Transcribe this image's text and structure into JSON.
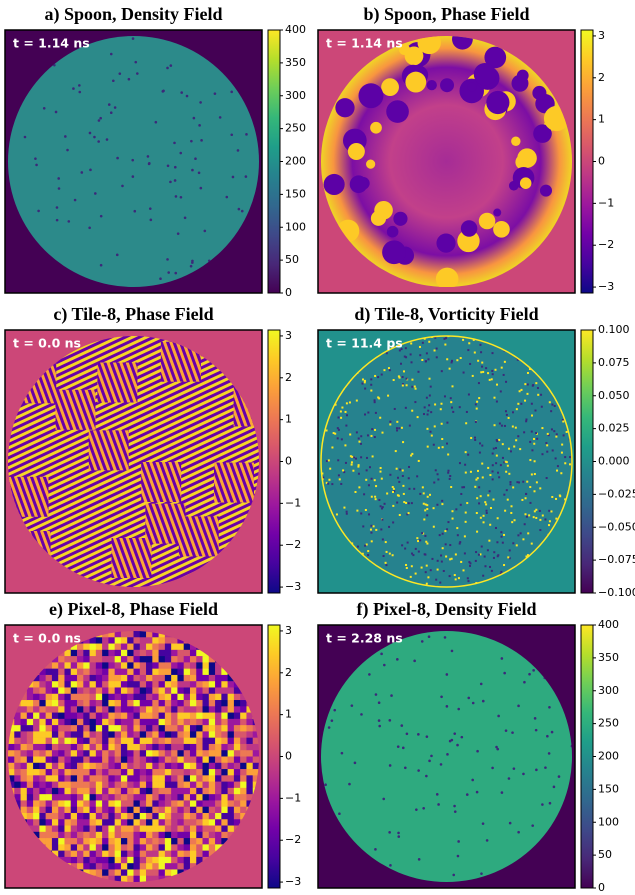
{
  "chart_data": [
    {
      "type": "heatmap",
      "title": "a) Spoon, Density Field",
      "annotation": "t = 1.14 ns",
      "colormap": "viridis",
      "ylim": [
        0,
        400
      ],
      "yticks": [
        0,
        50,
        100,
        150,
        200,
        250,
        300,
        350,
        400
      ]
    },
    {
      "type": "heatmap",
      "title": "b) Spoon, Phase Field",
      "annotation": "t = 1.14 ns",
      "colormap": "plasma",
      "ylim": [
        -3.1416,
        3.1416
      ],
      "yticks": [
        {
          "value": -3,
          "label": "−3"
        },
        {
          "value": -2,
          "label": "−2"
        },
        {
          "value": -1,
          "label": "−1"
        },
        0,
        1,
        2,
        3
      ]
    },
    {
      "type": "heatmap",
      "title": "c) Tile-8, Phase Field",
      "annotation": "t = 0.0 ns",
      "colormap": "plasma",
      "ylim": [
        -3.1416,
        3.1416
      ],
      "yticks": [
        {
          "value": -3,
          "label": "−3"
        },
        {
          "value": -2,
          "label": "−2"
        },
        {
          "value": -1,
          "label": "−1"
        },
        0,
        1,
        2,
        3
      ]
    },
    {
      "type": "heatmap",
      "title": "d) Tile-8, Vorticity Field",
      "annotation": "t = 11.4 ps",
      "colormap": "viridis",
      "ylim": [
        -0.1,
        0.1
      ],
      "yticks": [
        {
          "value": -0.1,
          "label": "−0.100"
        },
        {
          "value": -0.075,
          "label": "−0.075"
        },
        {
          "value": -0.05,
          "label": "−0.050"
        },
        {
          "value": -0.025,
          "label": "−0.025"
        },
        {
          "value": 0,
          "label": "0.000"
        },
        {
          "value": 0.025,
          "label": "0.025"
        },
        {
          "value": 0.05,
          "label": "0.050"
        },
        {
          "value": 0.075,
          "label": "0.075"
        },
        {
          "value": 0.1,
          "label": "0.100"
        }
      ]
    },
    {
      "type": "heatmap",
      "title": "e) Pixel-8, Phase Field",
      "annotation": "t = 0.0 ns",
      "colormap": "plasma",
      "ylim": [
        -3.1416,
        3.1416
      ],
      "yticks": [
        {
          "value": -3,
          "label": "−3"
        },
        {
          "value": -2,
          "label": "−2"
        },
        {
          "value": -1,
          "label": "−1"
        },
        0,
        1,
        2,
        3
      ]
    },
    {
      "type": "heatmap",
      "title": "f) Pixel-8, Density Field",
      "annotation": "t = 2.28 ns",
      "colormap": "viridis",
      "ylim": [
        0,
        400
      ],
      "yticks": [
        0,
        50,
        100,
        150,
        200,
        250,
        300,
        350,
        400
      ]
    }
  ]
}
